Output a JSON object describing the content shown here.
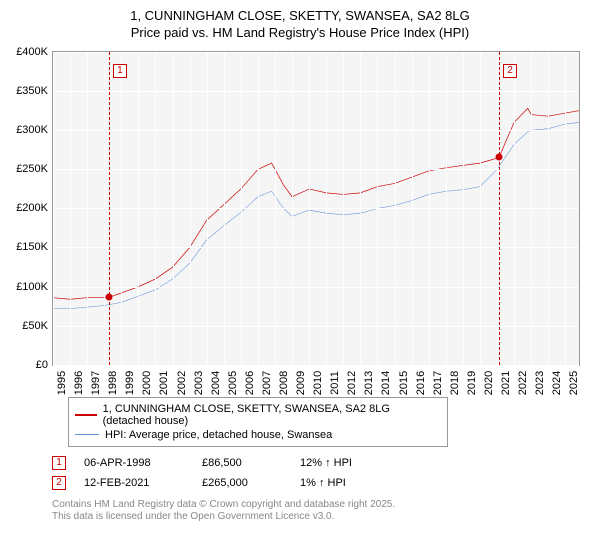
{
  "title": {
    "line1": "1, CUNNINGHAM CLOSE, SKETTY, SWANSEA, SA2 8LG",
    "line2": "Price paid vs. HM Land Registry's House Price Index (HPI)"
  },
  "chart": {
    "type": "line",
    "background_color": "#f5f5f5",
    "grid_color": "#ffffff",
    "border_color": "#999999",
    "ylim": [
      0,
      400000
    ],
    "ytick_step": 50000,
    "yticks": [
      "£0",
      "£50K",
      "£100K",
      "£150K",
      "£200K",
      "£250K",
      "£300K",
      "£350K",
      "£400K"
    ],
    "xlim_years": [
      1995,
      2025.8
    ],
    "xticks": [
      1995,
      1996,
      1997,
      1998,
      1999,
      2000,
      2001,
      2002,
      2003,
      2004,
      2005,
      2006,
      2007,
      2008,
      2009,
      2010,
      2011,
      2012,
      2013,
      2014,
      2015,
      2016,
      2017,
      2018,
      2019,
      2020,
      2021,
      2022,
      2023,
      2024,
      2025
    ],
    "series": [
      {
        "name": "1, CUNNINGHAM CLOSE, SKETTY, SWANSEA, SA2 8LG (detached house)",
        "color": "#cc0000",
        "line_width": 2,
        "data": [
          [
            1995,
            86000
          ],
          [
            1996,
            84000
          ],
          [
            1997,
            86000
          ],
          [
            1998.27,
            86500
          ],
          [
            1999,
            92000
          ],
          [
            2000,
            100000
          ],
          [
            2001,
            110000
          ],
          [
            2002,
            125000
          ],
          [
            2003,
            150000
          ],
          [
            2004,
            185000
          ],
          [
            2005,
            205000
          ],
          [
            2006,
            225000
          ],
          [
            2007,
            250000
          ],
          [
            2007.8,
            258000
          ],
          [
            2008.5,
            230000
          ],
          [
            2009,
            215000
          ],
          [
            2010,
            225000
          ],
          [
            2011,
            220000
          ],
          [
            2012,
            218000
          ],
          [
            2013,
            220000
          ],
          [
            2014,
            228000
          ],
          [
            2015,
            232000
          ],
          [
            2016,
            240000
          ],
          [
            2017,
            248000
          ],
          [
            2018,
            252000
          ],
          [
            2019,
            255000
          ],
          [
            2020,
            258000
          ],
          [
            2021.12,
            265000
          ],
          [
            2021.5,
            285000
          ],
          [
            2022,
            310000
          ],
          [
            2022.8,
            328000
          ],
          [
            2023,
            320000
          ],
          [
            2024,
            318000
          ],
          [
            2025,
            322000
          ],
          [
            2025.8,
            325000
          ]
        ]
      },
      {
        "name": "HPI: Average price, detached house, Swansea",
        "color": "#5a8fd6",
        "line_width": 1.5,
        "data": [
          [
            1995,
            72000
          ],
          [
            1996,
            72000
          ],
          [
            1997,
            74000
          ],
          [
            1998,
            76000
          ],
          [
            1999,
            80000
          ],
          [
            2000,
            88000
          ],
          [
            2001,
            96000
          ],
          [
            2002,
            110000
          ],
          [
            2003,
            130000
          ],
          [
            2004,
            160000
          ],
          [
            2005,
            178000
          ],
          [
            2006,
            195000
          ],
          [
            2007,
            215000
          ],
          [
            2007.8,
            222000
          ],
          [
            2008.5,
            200000
          ],
          [
            2009,
            190000
          ],
          [
            2010,
            198000
          ],
          [
            2011,
            194000
          ],
          [
            2012,
            192000
          ],
          [
            2013,
            194000
          ],
          [
            2014,
            200000
          ],
          [
            2015,
            204000
          ],
          [
            2016,
            210000
          ],
          [
            2017,
            218000
          ],
          [
            2018,
            222000
          ],
          [
            2019,
            224000
          ],
          [
            2020,
            228000
          ],
          [
            2021,
            250000
          ],
          [
            2022,
            282000
          ],
          [
            2022.8,
            298000
          ],
          [
            2023,
            300000
          ],
          [
            2024,
            302000
          ],
          [
            2025,
            308000
          ],
          [
            2025.8,
            310000
          ]
        ]
      }
    ],
    "markers": [
      {
        "id": "1",
        "year": 1998.27,
        "value": 86500,
        "color": "#cc0000"
      },
      {
        "id": "2",
        "year": 2021.12,
        "value": 265000,
        "color": "#cc0000"
      }
    ]
  },
  "legend": {
    "items": [
      {
        "label": "1, CUNNINGHAM CLOSE, SKETTY, SWANSEA, SA2 8LG (detached house)",
        "color": "#cc0000",
        "width": 2
      },
      {
        "label": "HPI: Average price, detached house, Swansea",
        "color": "#5a8fd6",
        "width": 1.5
      }
    ]
  },
  "transactions": [
    {
      "id": "1",
      "color": "#cc0000",
      "date": "06-APR-1998",
      "price": "£86,500",
      "pct": "12% ↑ HPI"
    },
    {
      "id": "2",
      "color": "#cc0000",
      "date": "12-FEB-2021",
      "price": "£265,000",
      "pct": "1% ↑ HPI"
    }
  ],
  "footer": {
    "line1": "Contains HM Land Registry data © Crown copyright and database right 2025.",
    "line2": "This data is licensed under the Open Government Licence v3.0."
  }
}
